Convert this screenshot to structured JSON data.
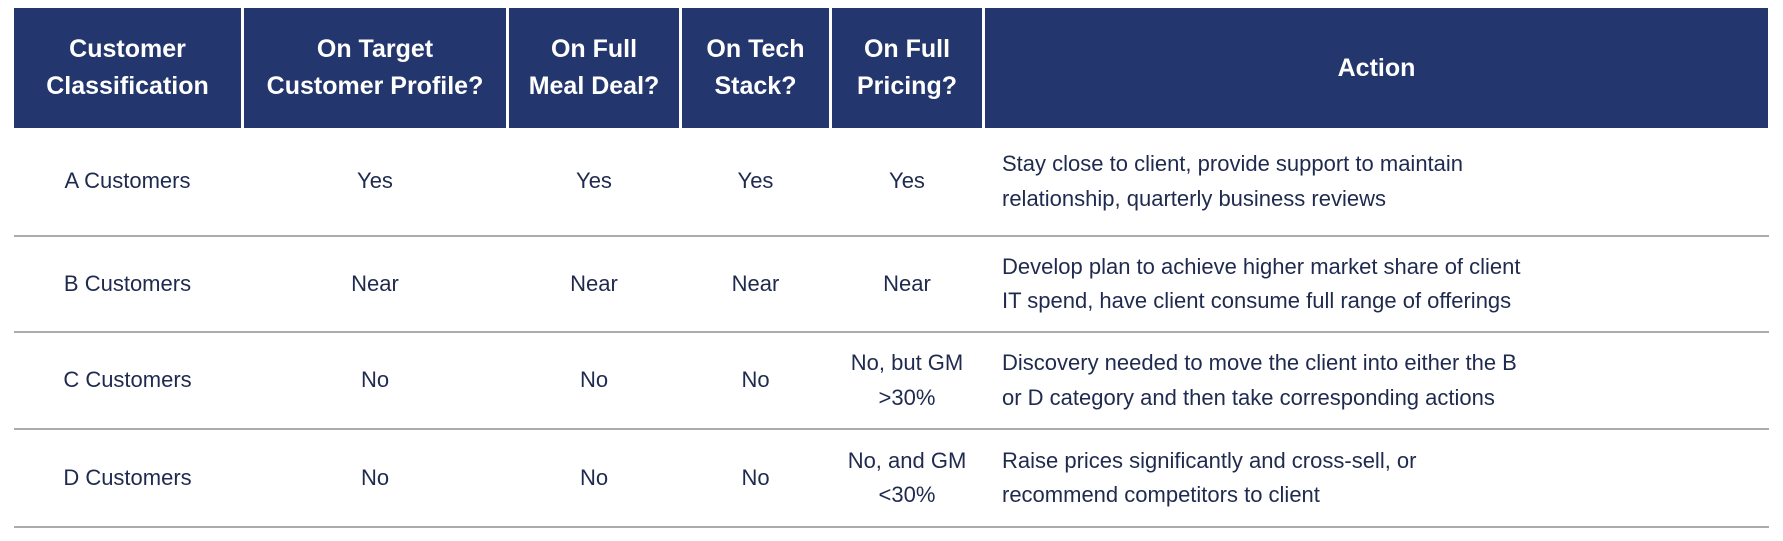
{
  "table": {
    "headers": [
      "Customer\nClassification",
      "On Target\nCustomer Profile?",
      "On Full\nMeal Deal?",
      "On Tech\nStack?",
      "On Full\nPricing?",
      "Action"
    ],
    "rows": [
      {
        "classification": "A Customers",
        "on_target_customer_profile": "Yes",
        "on_full_meal_deal": "Yes",
        "on_tech_stack": "Yes",
        "on_full_pricing": "Yes",
        "action": "Stay close to client, provide support to maintain\nrelationship, quarterly business reviews"
      },
      {
        "classification": "B Customers",
        "on_target_customer_profile": "Near",
        "on_full_meal_deal": "Near",
        "on_tech_stack": "Near",
        "on_full_pricing": "Near",
        "action": "Develop plan to achieve higher market share of client\nIT spend, have client consume full range of offerings"
      },
      {
        "classification": "C Customers",
        "on_target_customer_profile": "No",
        "on_full_meal_deal": "No",
        "on_tech_stack": "No",
        "on_full_pricing": "No, but GM\n>30%",
        "action": "Discovery needed to move the client into either the B\nor D category and then take corresponding actions"
      },
      {
        "classification": "D Customers",
        "on_target_customer_profile": "No",
        "on_full_meal_deal": "No",
        "on_tech_stack": "No",
        "on_full_pricing": "No, and GM\n<30%",
        "action": "Raise prices significantly and cross-sell, or\nrecommend competitors to client"
      }
    ]
  },
  "colors": {
    "header_bg": "#24366E",
    "header_text": "#FFFFFF",
    "body_text": "#1F2A4E",
    "row_divider": "#ABABAB"
  }
}
